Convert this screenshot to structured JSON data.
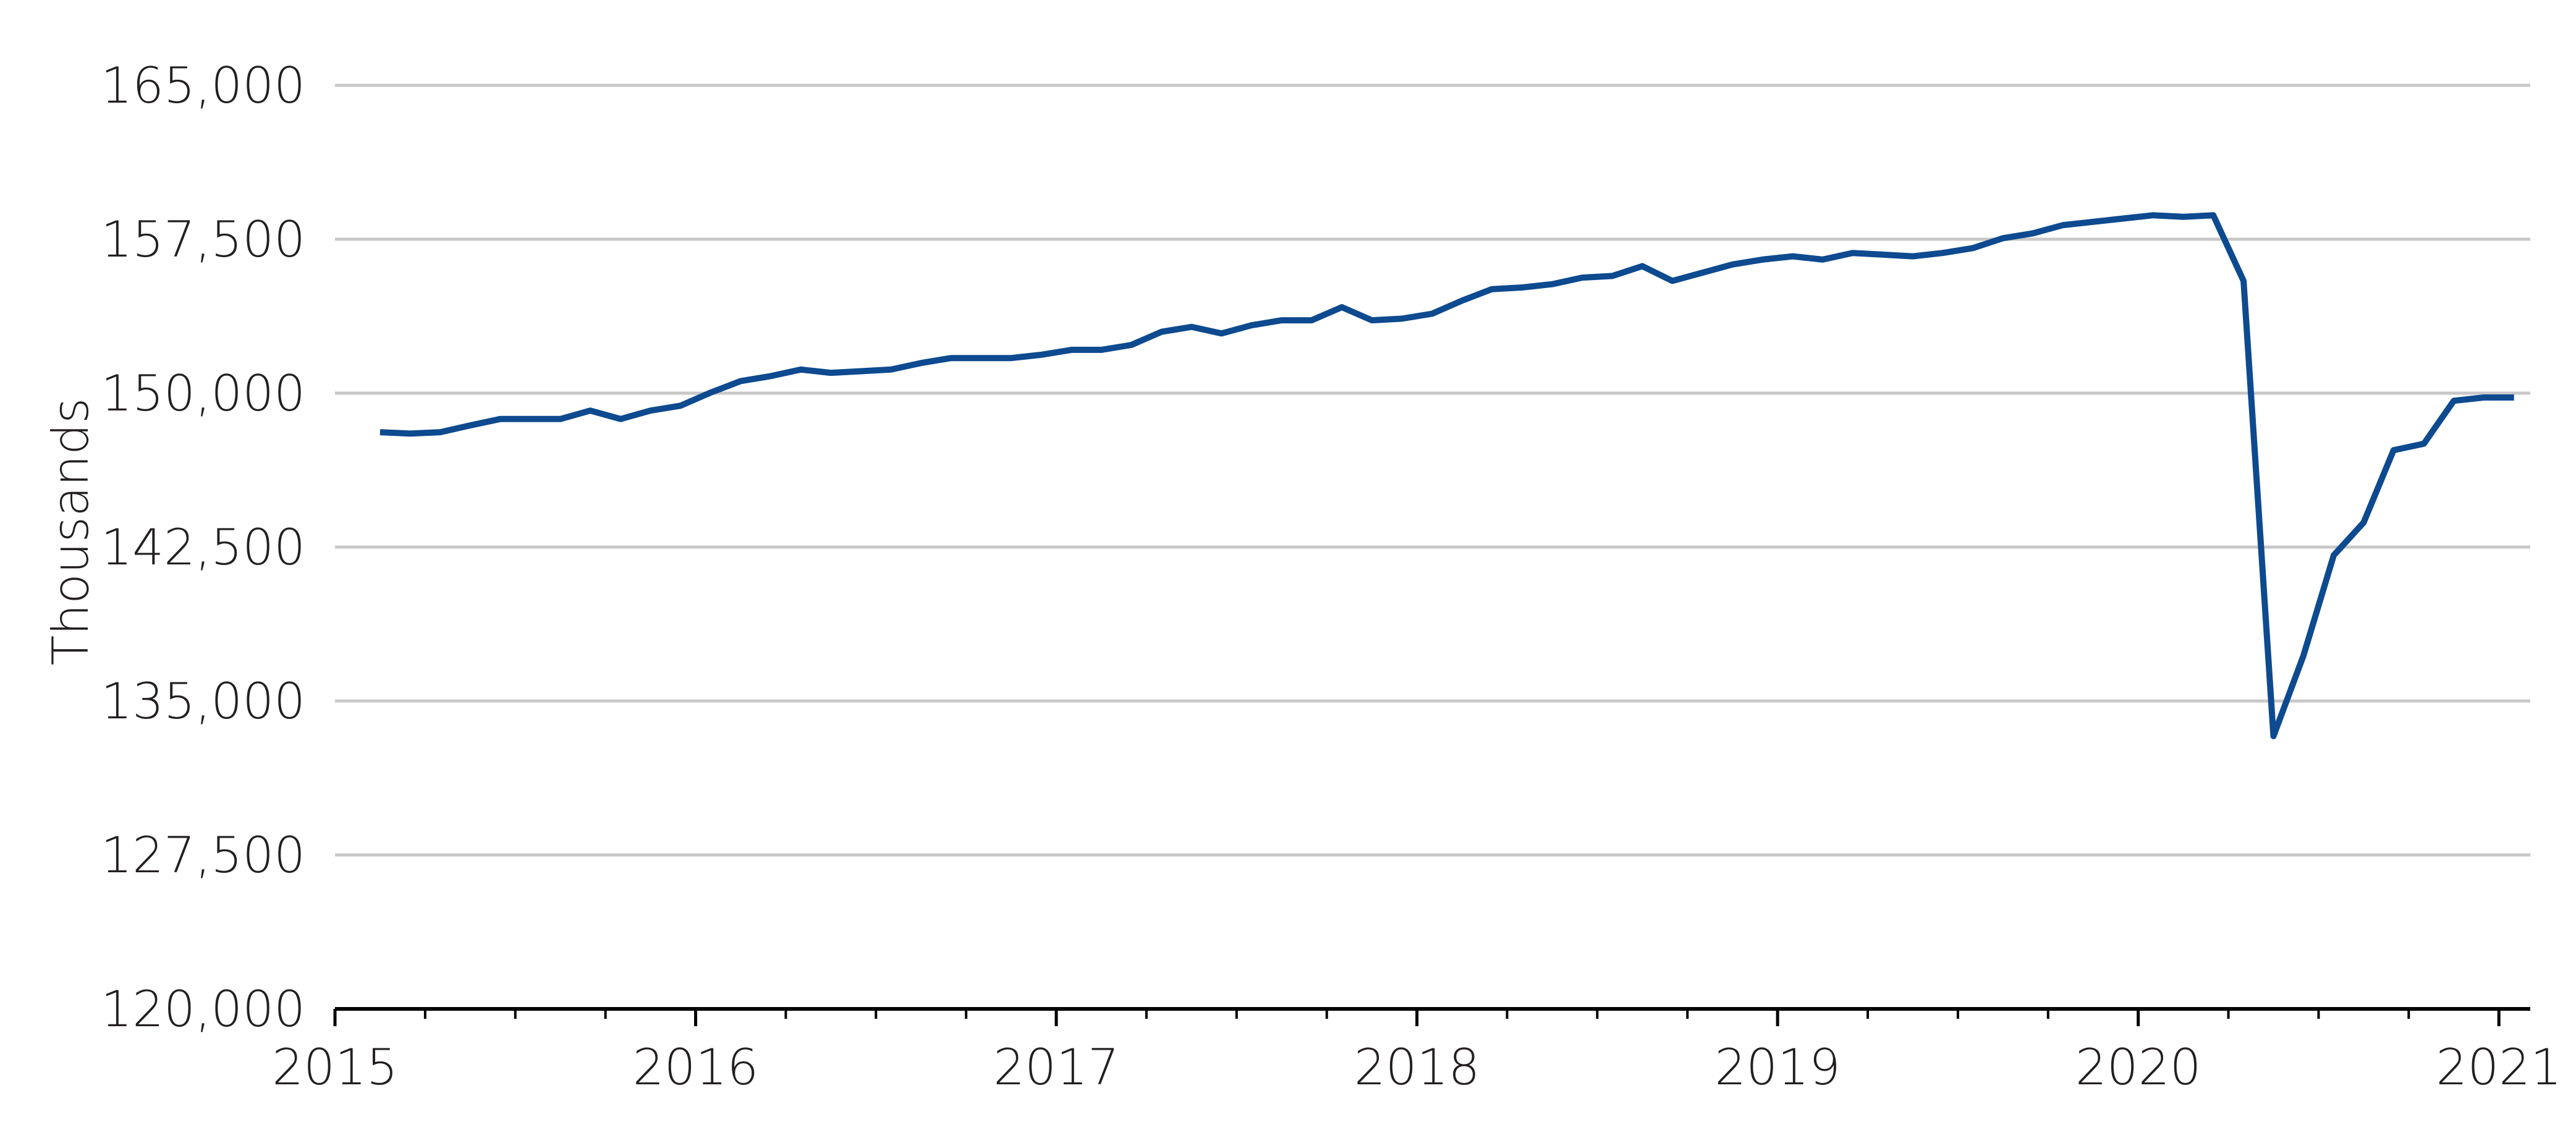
{
  "chart_data": {
    "type": "line",
    "y_label": "Thousands",
    "x": [
      2015.125,
      2015.208,
      2015.292,
      2015.375,
      2015.458,
      2015.542,
      2015.625,
      2015.708,
      2015.792,
      2015.875,
      2015.958,
      2016.042,
      2016.125,
      2016.208,
      2016.292,
      2016.375,
      2016.458,
      2016.542,
      2016.625,
      2016.708,
      2016.792,
      2016.875,
      2016.958,
      2017.042,
      2017.125,
      2017.208,
      2017.292,
      2017.375,
      2017.458,
      2017.542,
      2017.625,
      2017.708,
      2017.792,
      2017.875,
      2017.958,
      2018.042,
      2018.125,
      2018.208,
      2018.292,
      2018.375,
      2018.458,
      2018.542,
      2018.625,
      2018.708,
      2018.792,
      2018.875,
      2018.958,
      2019.042,
      2019.125,
      2019.208,
      2019.292,
      2019.375,
      2019.458,
      2019.542,
      2019.625,
      2019.708,
      2019.792,
      2019.875,
      2019.958,
      2020.042,
      2020.125,
      2020.208,
      2020.292,
      2020.375,
      2020.458,
      2020.542,
      2020.625,
      2020.708,
      2020.792,
      2020.875,
      2020.958,
      2021.042
    ],
    "series": [
      {
        "color": "#0d4a8f",
        "values": [
          148100,
          148030,
          148100,
          148430,
          148740,
          148740,
          148740,
          149150,
          148740,
          149150,
          149390,
          150030,
          150590,
          150830,
          151150,
          150990,
          151070,
          151150,
          151470,
          151710,
          151710,
          151710,
          151870,
          152110,
          152110,
          152350,
          152990,
          153230,
          152910,
          153310,
          153550,
          153550,
          154190,
          153550,
          153630,
          153870,
          154510,
          155070,
          155150,
          155310,
          155630,
          155710,
          156190,
          155470,
          155870,
          156270,
          156510,
          156670,
          156510,
          156830,
          156750,
          156670,
          156830,
          157070,
          157550,
          157790,
          158190,
          158350,
          158510,
          158670,
          158590,
          158670,
          155470,
          133290,
          137210,
          142100,
          143700,
          147220,
          147540,
          149630,
          149790,
          149790
        ]
      }
    ],
    "xlim": [
      2015,
      2021.087
    ],
    "xticks": [
      2015,
      2016,
      2017,
      2018,
      2019,
      2020,
      2021
    ],
    "ylim": [
      120000,
      165000
    ],
    "yticks": [
      {
        "value": 120000,
        "label": "120,000"
      },
      {
        "value": 127500,
        "label": "127,500"
      },
      {
        "value": 135000,
        "label": "135,000"
      },
      {
        "value": 142500,
        "label": "142,500"
      },
      {
        "value": 150000,
        "label": "150,000"
      },
      {
        "value": 157500,
        "label": "157,500"
      },
      {
        "value": 165000,
        "label": "165,000"
      }
    ],
    "grid": true
  }
}
